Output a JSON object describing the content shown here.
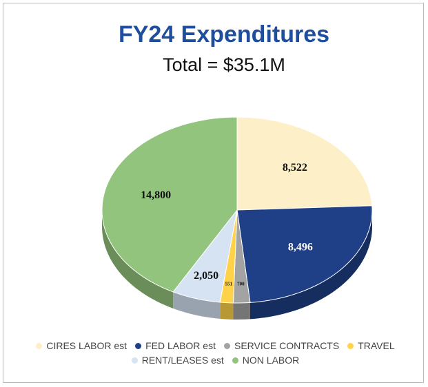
{
  "chart_data": {
    "type": "pie",
    "title": "FY24 Expenditures",
    "subtitle": "Total = $35.1M",
    "categories": [
      "CIRES LABOR est",
      "FED LABOR est",
      "SERVICE CONTRACTS",
      "TRAVEL",
      "RENT/LEASES est",
      "NON LABOR"
    ],
    "values": [
      8522,
      8496,
      700,
      551,
      2050,
      14800
    ],
    "value_labels": [
      "8,522",
      "8,496",
      "700",
      "551",
      "2,050",
      "14,800"
    ],
    "colors": [
      "#fdf0c8",
      "#1f3f86",
      "#a3a3a3",
      "#ffd24a",
      "#d5e3f3",
      "#93c47d"
    ]
  }
}
